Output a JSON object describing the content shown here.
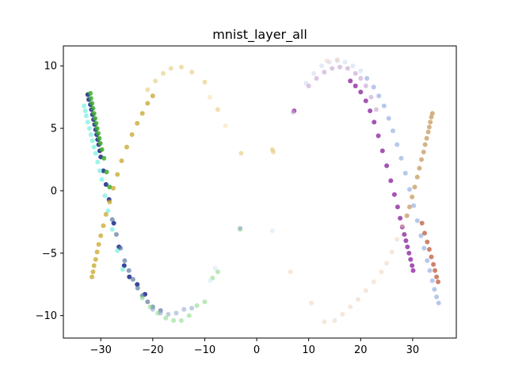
{
  "chart_data": {
    "type": "scatter",
    "title": "mnist_layer_all",
    "xlabel": "",
    "ylabel": "",
    "xlim": [
      -37.2,
      38.4
    ],
    "ylim": [
      -11.8,
      11.6
    ],
    "xticks": [
      -30,
      -20,
      -10,
      0,
      10,
      20,
      30
    ],
    "yticks": [
      -10,
      -5,
      0,
      5,
      10
    ],
    "xtick_labels": [
      "−30",
      "−20",
      "−10",
      "0",
      "10",
      "20",
      "30"
    ],
    "ytick_labels": [
      "−10",
      "−5",
      "0",
      "5",
      "10"
    ],
    "grid": false,
    "legend": "none",
    "series": [
      {
        "color": "#26328f",
        "opacity": 0.9,
        "points": [
          [
            -32.5,
            7.7
          ],
          [
            -32.3,
            7.3
          ],
          [
            -32.0,
            6.9
          ],
          [
            -31.8,
            6.5
          ],
          [
            -31.6,
            6.1
          ],
          [
            -31.4,
            5.7
          ],
          [
            -31.2,
            5.3
          ],
          [
            -31.0,
            4.9
          ],
          [
            -30.8,
            4.5
          ],
          [
            -30.6,
            4.1
          ],
          [
            -30.4,
            3.7
          ],
          [
            -30.2,
            3.2
          ],
          [
            -30.0,
            2.7
          ],
          [
            -29.5,
            1.6
          ],
          [
            -29.0,
            0.5
          ],
          [
            -28.4,
            -0.7
          ],
          [
            -27.5,
            -2.6
          ],
          [
            -26.5,
            -4.5
          ],
          [
            -25.5,
            -6.0
          ],
          [
            -24.5,
            -6.9
          ],
          [
            -23.0,
            -7.5
          ],
          [
            -21.5,
            -8.3
          ]
        ]
      },
      {
        "color": "#3cad2a",
        "opacity": 0.85,
        "points": [
          [
            -32.0,
            7.8
          ],
          [
            -31.9,
            7.4
          ],
          [
            -31.7,
            7.0
          ],
          [
            -31.5,
            6.6
          ],
          [
            -31.3,
            6.2
          ],
          [
            -31.1,
            5.8
          ],
          [
            -30.9,
            5.4
          ],
          [
            -30.7,
            5.0
          ],
          [
            -30.5,
            4.6
          ],
          [
            -30.3,
            4.2
          ],
          [
            -30.1,
            3.8
          ],
          [
            -29.8,
            3.3
          ],
          [
            -29.4,
            2.6
          ],
          [
            -28.9,
            1.5
          ],
          [
            -28.3,
            0.3
          ]
        ]
      },
      {
        "color": "#7df0e0",
        "opacity": 0.75,
        "points": [
          [
            -33.2,
            6.8
          ],
          [
            -33.0,
            6.4
          ],
          [
            -32.8,
            6.0
          ],
          [
            -32.5,
            5.5
          ],
          [
            -32.2,
            5.0
          ],
          [
            -31.9,
            4.5
          ],
          [
            -31.6,
            4.0
          ],
          [
            -31.3,
            3.5
          ],
          [
            -31.0,
            3.0
          ],
          [
            -30.6,
            2.3
          ],
          [
            -30.2,
            1.6
          ],
          [
            -29.8,
            0.9
          ],
          [
            -29.2,
            -0.4
          ],
          [
            -28.6,
            -1.6
          ],
          [
            -27.8,
            -3.1
          ],
          [
            -26.8,
            -4.8
          ],
          [
            -25.8,
            -6.3
          ]
        ]
      },
      {
        "color": "#5a7ba0",
        "opacity": 0.7,
        "points": [
          [
            -27.8,
            -2.3
          ],
          [
            -27.0,
            -3.5
          ],
          [
            -26.2,
            -4.6
          ],
          [
            -25.4,
            -5.6
          ],
          [
            -24.6,
            -6.4
          ],
          [
            -23.8,
            -7.1
          ],
          [
            -22.9,
            -7.8
          ],
          [
            -22.0,
            -8.4
          ],
          [
            -21.0,
            -8.9
          ],
          [
            -20.0,
            -9.3
          ],
          [
            -18.5,
            -9.6
          ]
        ]
      },
      {
        "color": "#8fd98a",
        "opacity": 0.6,
        "points": [
          [
            -22.0,
            -8.6
          ],
          [
            -20.5,
            -9.3
          ],
          [
            -19.0,
            -9.8
          ],
          [
            -17.5,
            -10.2
          ],
          [
            -16.0,
            -10.4
          ],
          [
            -14.5,
            -10.4
          ],
          [
            -13.0,
            -10.0
          ],
          [
            -11.5,
            -9.2
          ],
          [
            -10.0,
            -8.9
          ],
          [
            -8.5,
            -7.0
          ],
          [
            -7.5,
            -6.5
          ],
          [
            -3.2,
            -3.1
          ]
        ]
      },
      {
        "color": "#8aa6c9",
        "opacity": 0.55,
        "points": [
          [
            -20.0,
            -9.5
          ],
          [
            -18.5,
            -9.8
          ],
          [
            -17.0,
            -9.9
          ],
          [
            -15.5,
            -9.8
          ],
          [
            -14.0,
            -9.5
          ],
          [
            -12.5,
            -9.4
          ],
          [
            -3.2,
            -3.0
          ]
        ]
      },
      {
        "color": "#d6e8f5",
        "opacity": 0.6,
        "points": [
          [
            -9.0,
            -7.2
          ],
          [
            -8.0,
            -6.2
          ],
          [
            3.0,
            -3.2
          ]
        ]
      },
      {
        "color": "#c8a62a",
        "opacity": 0.75,
        "points": [
          [
            -31.7,
            -6.9
          ],
          [
            -31.5,
            -6.5
          ],
          [
            -31.3,
            -6.0
          ],
          [
            -31.0,
            -5.5
          ],
          [
            -30.7,
            -4.9
          ],
          [
            -30.4,
            -4.3
          ],
          [
            -30.0,
            -3.6
          ],
          [
            -29.5,
            -2.8
          ],
          [
            -29.0,
            -1.9
          ],
          [
            -28.3,
            -0.9
          ],
          [
            -27.6,
            0.2
          ],
          [
            -26.8,
            1.3
          ],
          [
            -26.0,
            2.4
          ],
          [
            -25.0,
            3.5
          ],
          [
            -24.0,
            4.5
          ],
          [
            -23.0,
            5.4
          ],
          [
            -22.0,
            6.2
          ],
          [
            -21.0,
            7.0
          ],
          [
            -20.0,
            7.6
          ]
        ]
      },
      {
        "color": "#e3c46c",
        "opacity": 0.55,
        "points": [
          [
            -21.0,
            8.1
          ],
          [
            -19.5,
            8.8
          ],
          [
            -18.0,
            9.4
          ],
          [
            -16.5,
            9.8
          ],
          [
            -14.5,
            9.9
          ],
          [
            -12.5,
            9.5
          ],
          [
            -10.0,
            8.7
          ],
          [
            -7.5,
            6.5
          ],
          [
            -3.0,
            3.0
          ],
          [
            3.0,
            3.3
          ],
          [
            3.2,
            3.1
          ]
        ]
      },
      {
        "color": "#f3d89a",
        "opacity": 0.45,
        "points": [
          [
            -9.0,
            7.5
          ],
          [
            -6.0,
            5.2
          ]
        ]
      },
      {
        "color": "#8e2aa0",
        "opacity": 0.8,
        "points": [
          [
            30.1,
            -6.4
          ],
          [
            29.9,
            -6.0
          ],
          [
            29.6,
            -5.5
          ],
          [
            29.3,
            -5.0
          ],
          [
            29.0,
            -4.5
          ],
          [
            28.7,
            -4.0
          ],
          [
            28.4,
            -3.5
          ],
          [
            28.0,
            -2.9
          ],
          [
            27.6,
            -2.2
          ],
          [
            27.1,
            -1.3
          ],
          [
            26.5,
            -0.3
          ],
          [
            25.8,
            0.8
          ],
          [
            25.0,
            2.0
          ],
          [
            24.2,
            3.2
          ],
          [
            23.4,
            4.4
          ],
          [
            22.6,
            5.5
          ],
          [
            21.8,
            6.4
          ],
          [
            21.0,
            7.2
          ],
          [
            20.0,
            7.9
          ],
          [
            19.0,
            8.4
          ],
          [
            18.0,
            8.8
          ],
          [
            7.2,
            6.4
          ]
        ]
      },
      {
        "color": "#c3a0d2",
        "opacity": 0.6,
        "points": [
          [
            23.0,
            6.5
          ],
          [
            22.0,
            7.5
          ],
          [
            21.0,
            8.4
          ],
          [
            20.0,
            9.0
          ],
          [
            19.0,
            9.4
          ],
          [
            17.5,
            9.8
          ],
          [
            16.0,
            9.9
          ],
          [
            14.5,
            9.8
          ],
          [
            13.0,
            9.5
          ],
          [
            11.5,
            9.0
          ],
          [
            10.0,
            8.4
          ],
          [
            7.0,
            6.3
          ]
        ]
      },
      {
        "color": "#9fb6e3",
        "opacity": 0.75,
        "points": [
          [
            35.0,
            -9.0
          ],
          [
            34.6,
            -8.5
          ],
          [
            34.2,
            -7.9
          ],
          [
            33.8,
            -7.2
          ],
          [
            33.3,
            -6.4
          ],
          [
            32.8,
            -5.6
          ],
          [
            32.2,
            -4.6
          ],
          [
            31.6,
            -3.6
          ],
          [
            30.9,
            -2.4
          ],
          [
            30.2,
            -1.2
          ],
          [
            29.4,
            0.1
          ],
          [
            28.6,
            1.4
          ],
          [
            27.8,
            2.6
          ],
          [
            27.0,
            3.7
          ],
          [
            26.2,
            4.8
          ],
          [
            25.4,
            5.8
          ],
          [
            24.5,
            6.8
          ],
          [
            23.5,
            7.6
          ],
          [
            22.5,
            8.3
          ],
          [
            21.2,
            9.0
          ]
        ]
      },
      {
        "color": "#c8d4ee",
        "opacity": 0.5,
        "points": [
          [
            20.0,
            9.6
          ],
          [
            18.5,
            10.0
          ],
          [
            17.0,
            10.3
          ],
          [
            15.5,
            10.4
          ],
          [
            14.0,
            10.3
          ],
          [
            12.5,
            10.0
          ],
          [
            11.0,
            9.4
          ],
          [
            9.5,
            8.6
          ]
        ]
      },
      {
        "color": "#c46e52",
        "opacity": 0.85,
        "points": [
          [
            34.9,
            -7.3
          ],
          [
            34.6,
            -6.9
          ],
          [
            34.3,
            -6.4
          ],
          [
            34.0,
            -5.9
          ],
          [
            33.6,
            -5.3
          ],
          [
            33.2,
            -4.7
          ],
          [
            32.8,
            -4.1
          ],
          [
            32.3,
            -3.4
          ],
          [
            31.8,
            -2.6
          ]
        ]
      },
      {
        "color": "#c9a06a",
        "opacity": 0.8,
        "points": [
          [
            33.8,
            6.2
          ],
          [
            33.6,
            5.9
          ],
          [
            33.4,
            5.5
          ],
          [
            33.2,
            5.1
          ],
          [
            33.0,
            4.7
          ],
          [
            32.7,
            4.2
          ],
          [
            32.4,
            3.7
          ],
          [
            32.1,
            3.1
          ],
          [
            31.7,
            2.5
          ],
          [
            31.3,
            1.8
          ],
          [
            30.9,
            1.1
          ],
          [
            30.4,
            0.3
          ],
          [
            29.9,
            -0.5
          ],
          [
            29.4,
            -1.3
          ],
          [
            28.9,
            -2.0
          ]
        ]
      },
      {
        "color": "#e8c9b0",
        "opacity": 0.45,
        "points": [
          [
            28.0,
            -2.8
          ],
          [
            27.0,
            -3.9
          ],
          [
            26.0,
            -4.9
          ],
          [
            25.0,
            -5.8
          ],
          [
            24.0,
            -6.5
          ],
          [
            22.5,
            -7.3
          ],
          [
            21.0,
            -8.0
          ],
          [
            19.5,
            -8.7
          ],
          [
            18.0,
            -9.3
          ],
          [
            16.5,
            -9.9
          ],
          [
            15.0,
            -10.4
          ],
          [
            13.0,
            -10.5
          ],
          [
            10.5,
            -9.0
          ],
          [
            6.5,
            -6.5
          ],
          [
            15.5,
            10.5
          ],
          [
            13.5,
            10.4
          ]
        ]
      }
    ]
  }
}
